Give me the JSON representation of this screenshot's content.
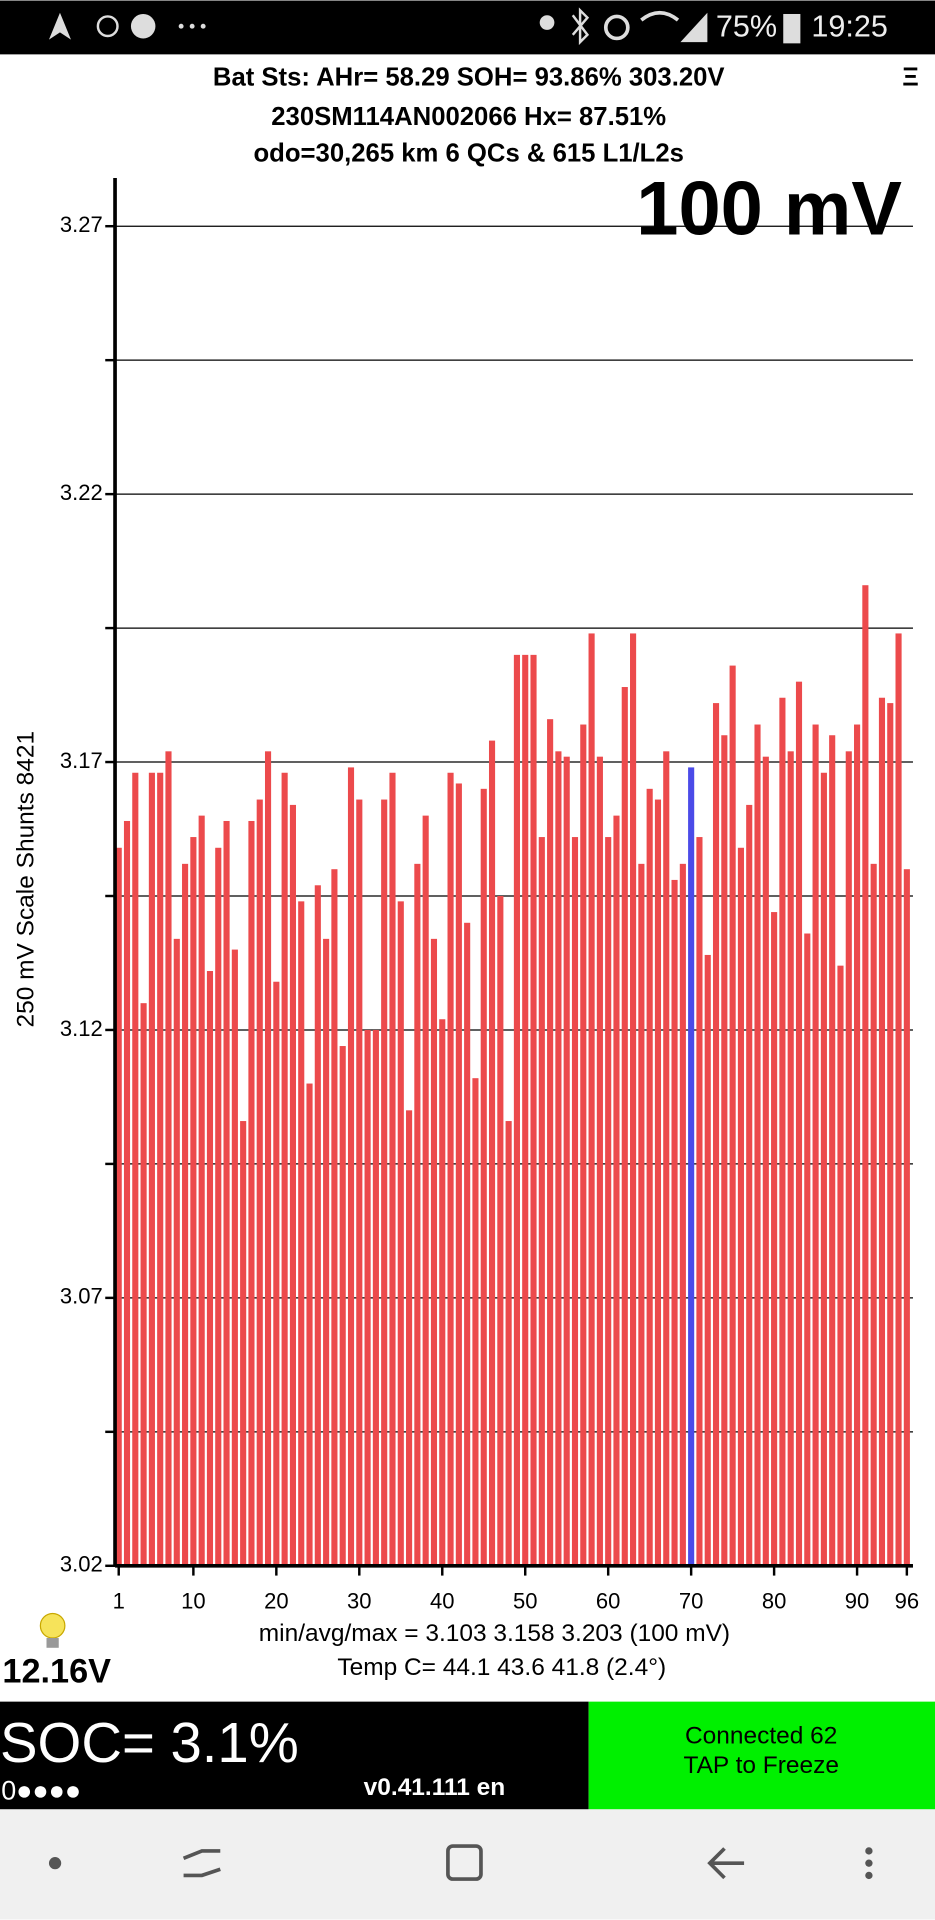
{
  "status_bar": {
    "battery": "75%",
    "time": "19:25"
  },
  "header": {
    "line1": "Bat Sts:  AHr= 58.29  SOH= 93.86%   303.20V",
    "menu": "Ξ",
    "line2": "230SM114AN002066   Hx= 87.51%",
    "line3": "odo=30,265 km 6 QCs & 615 L1/L2s"
  },
  "chart_data": {
    "type": "bar",
    "title": "100 mV",
    "y_label": "250 mV Scale   Shunts 8421",
    "x": [
      1,
      2,
      3,
      4,
      5,
      6,
      7,
      8,
      9,
      10,
      11,
      12,
      13,
      14,
      15,
      16,
      17,
      18,
      19,
      20,
      21,
      22,
      23,
      24,
      25,
      26,
      27,
      28,
      29,
      30,
      31,
      32,
      33,
      34,
      35,
      36,
      37,
      38,
      39,
      40,
      41,
      42,
      43,
      44,
      45,
      46,
      47,
      48,
      49,
      50,
      51,
      52,
      53,
      54,
      55,
      56,
      57,
      58,
      59,
      60,
      61,
      62,
      63,
      64,
      65,
      66,
      67,
      68,
      69,
      70,
      71,
      72,
      73,
      74,
      75,
      76,
      77,
      78,
      79,
      80,
      81,
      82,
      83,
      84,
      85,
      86,
      87,
      88,
      89,
      90,
      91,
      92,
      93,
      94,
      95,
      96
    ],
    "values": [
      3.154,
      3.159,
      3.168,
      3.125,
      3.168,
      3.168,
      3.172,
      3.137,
      3.151,
      3.156,
      3.16,
      3.131,
      3.154,
      3.159,
      3.135,
      3.103,
      3.159,
      3.163,
      3.172,
      3.129,
      3.168,
      3.162,
      3.144,
      3.11,
      3.147,
      3.137,
      3.15,
      3.117,
      3.169,
      3.163,
      3.12,
      3.12,
      3.163,
      3.168,
      3.144,
      3.105,
      3.151,
      3.16,
      3.137,
      3.122,
      3.168,
      3.166,
      3.14,
      3.111,
      3.165,
      3.174,
      3.145,
      3.103,
      3.19,
      3.19,
      3.19,
      3.156,
      3.178,
      3.172,
      3.171,
      3.156,
      3.177,
      3.194,
      3.171,
      3.156,
      3.16,
      3.184,
      3.194,
      3.151,
      3.165,
      3.163,
      3.172,
      3.148,
      3.151,
      3.169,
      3.156,
      3.134,
      3.181,
      3.175,
      3.188,
      3.154,
      3.162,
      3.177,
      3.171,
      3.142,
      3.182,
      3.172,
      3.185,
      3.138,
      3.177,
      3.168,
      3.175,
      3.132,
      3.172,
      3.177,
      3.203,
      3.151,
      3.182,
      3.181,
      3.194,
      3.15
    ],
    "color": "#ec4a4c",
    "highlight": {
      "index": 69,
      "color": "#4b4be8"
    },
    "xlim": [
      1,
      96
    ],
    "xticks": [
      1,
      10,
      20,
      30,
      40,
      50,
      60,
      70,
      80,
      90,
      96
    ],
    "ylim": [
      3.02,
      3.279
    ],
    "yticks": [
      3.02,
      3.07,
      3.12,
      3.17,
      3.22,
      3.27
    ],
    "minor_yticks": [
      3.045,
      3.095,
      3.145,
      3.195,
      3.245
    ],
    "grid": true
  },
  "stats": {
    "line1": "min/avg/max = 3.103 3.158 3.203  (100 mV)",
    "line2": "Temp C= 44.1  43.6  41.8  (2.4°)",
    "aux_voltage": "12.16V"
  },
  "footer": {
    "soc": "SOC= 3.1%",
    "dots": "0●●●●",
    "version": "v0.41.111 en",
    "status1": "Connected 62",
    "status2": "TAP to Freeze"
  }
}
